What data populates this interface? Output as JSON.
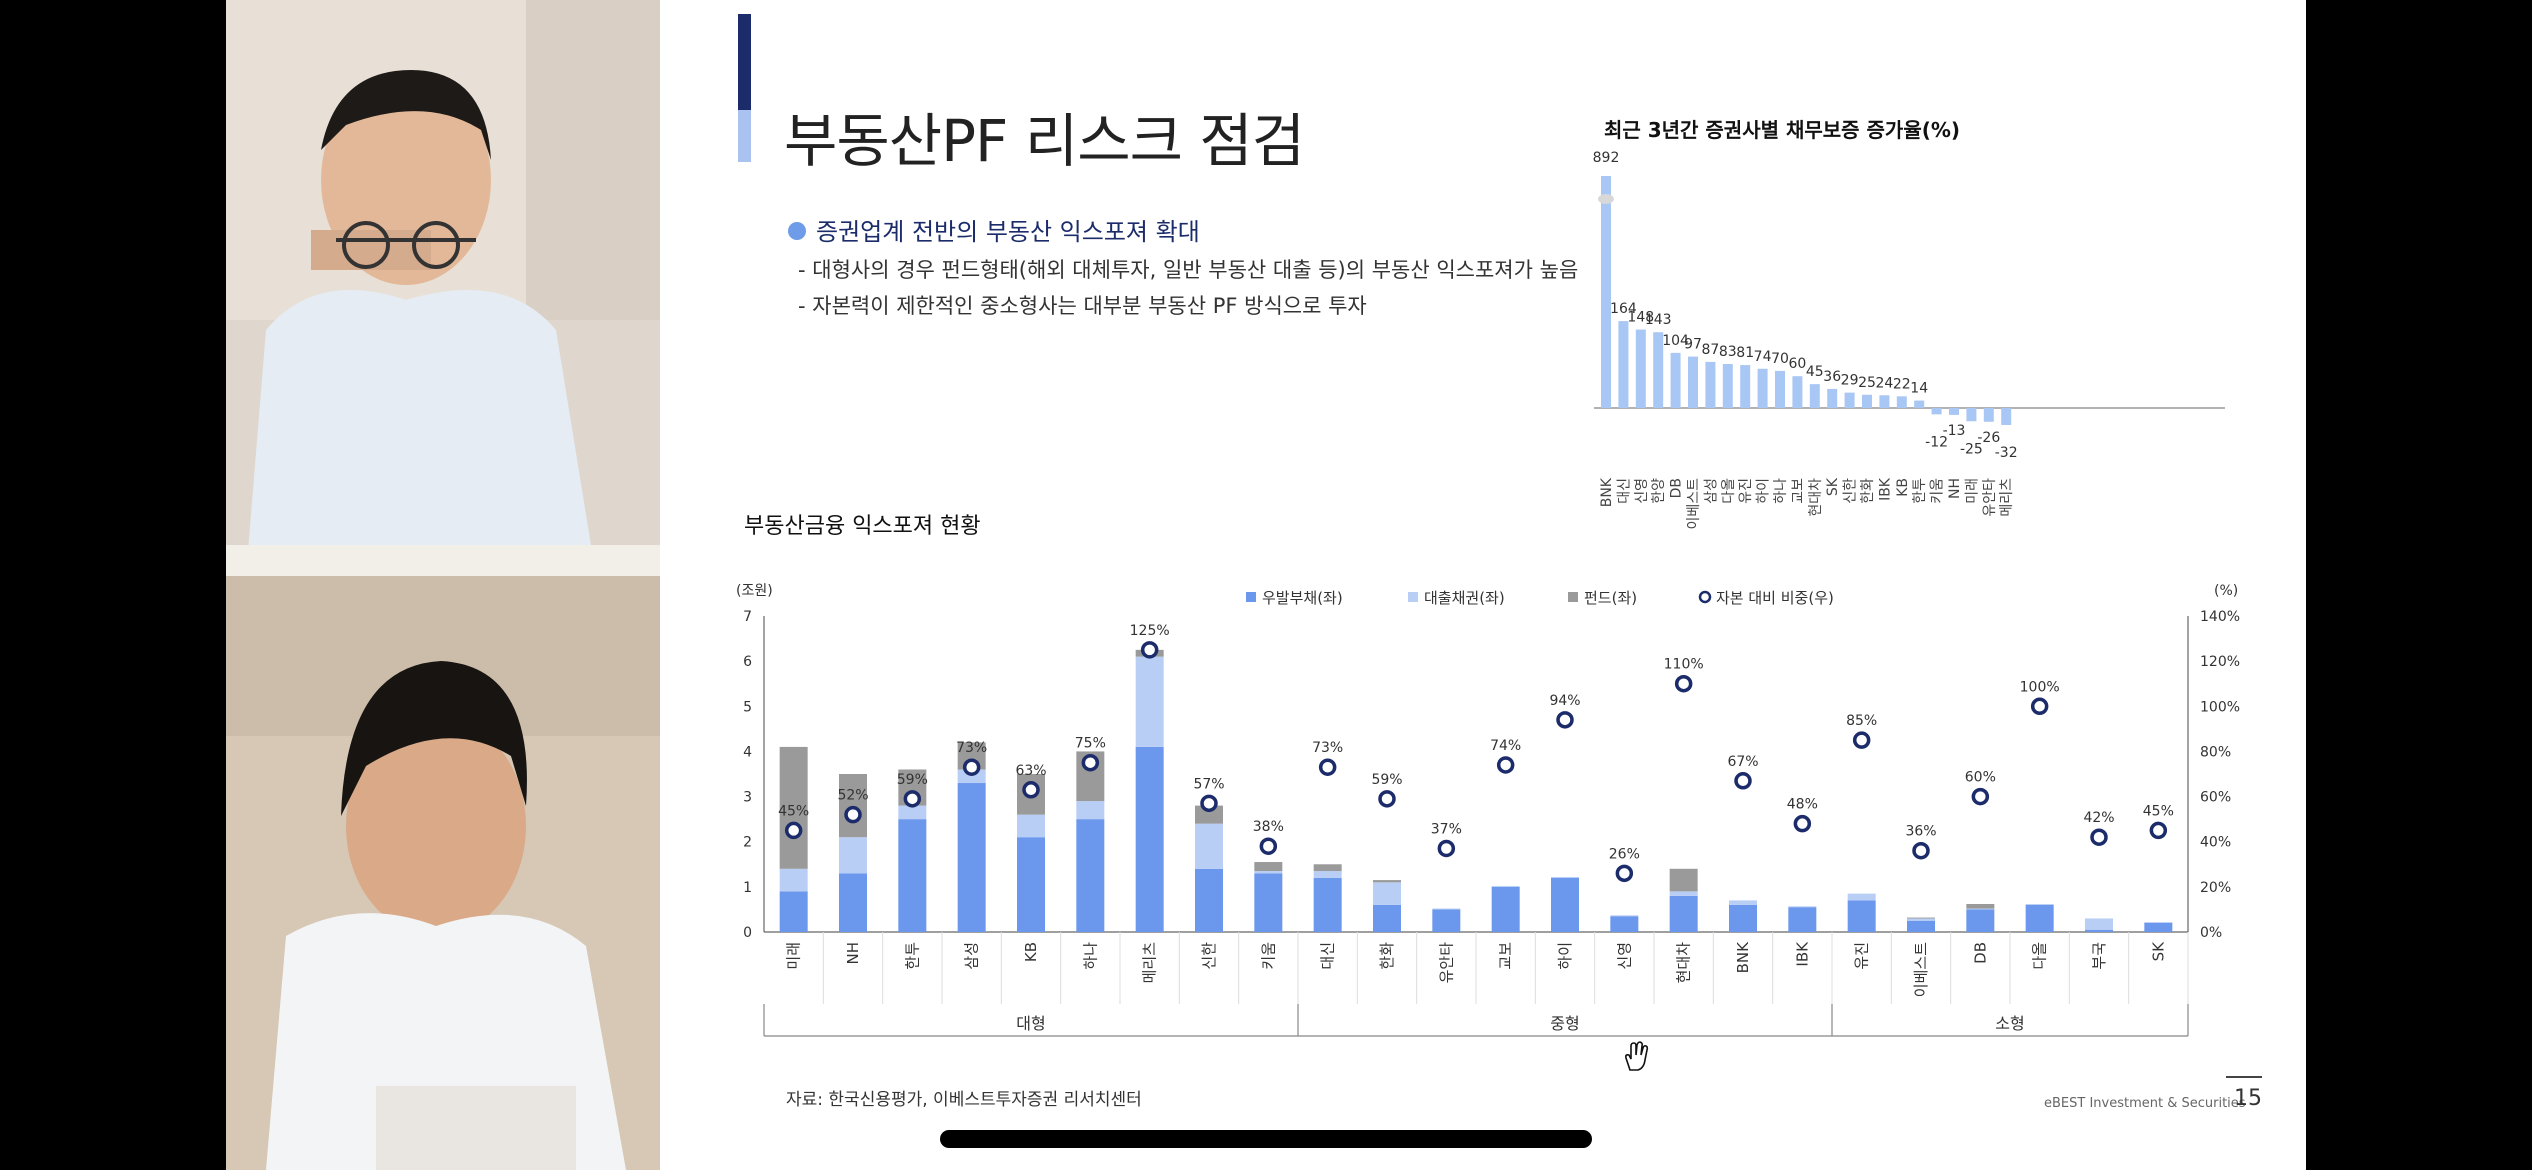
{
  "slide": {
    "title": "부동산PF 리스크 점검",
    "bullet": "증권업계 전반의 부동산 익스포져 확대",
    "sub1": "- 대형사의 경우 펀드형태(해외 대체투자, 일반 부동산 대출 등)의 부동산 익스포져가 높음",
    "sub2": "- 자본력이 제한적인 중소형사는 대부분 부동산 PF 방식으로 투자",
    "source": "자료: 한국신용평가, 이베스트투자증권 리서치센터",
    "brand": "eBEST Investment & Securities",
    "page": "15"
  },
  "colors": {
    "dark_navy": "#1c2c6b",
    "blue": "#6b97ec",
    "light_blue": "#b9cef5",
    "gray": "#9a9a9a",
    "top_bar": "#a9c7f4"
  },
  "chart_data": [
    {
      "type": "bar",
      "title": "최근 3년간 증권사별 채무보증 증가율(%)",
      "categories": [
        "BNK",
        "대신",
        "신영",
        "한양",
        "DB",
        "이베스트",
        "삼성",
        "다올",
        "유진",
        "하이",
        "하나",
        "교보",
        "현대차",
        "SK",
        "신한",
        "한화",
        "IBK",
        "KB",
        "한투",
        "키움",
        "NH",
        "미래",
        "유안타",
        "메리츠"
      ],
      "values": [
        892,
        164,
        148,
        143,
        104,
        97,
        87,
        83,
        81,
        74,
        70,
        60,
        45,
        36,
        29,
        25,
        24,
        22,
        14,
        -12,
        -13,
        -25,
        -26,
        -32
      ],
      "value_labels": [
        "892",
        "164",
        "148",
        "143",
        "104",
        "97",
        "87",
        "83",
        "81",
        "74",
        "70",
        "60",
        "45",
        "36",
        "29",
        "25",
        "24",
        "22",
        "14",
        "-12",
        "-13",
        "-25",
        "-26",
        "-32"
      ],
      "note": "axis broken for BNK"
    },
    {
      "type": "bar",
      "title": "부동산금융 익스포져 현황",
      "ylabel_left": "(조원)",
      "ylabel_right": "(%)",
      "ylim_left": [
        0,
        7
      ],
      "ylim_right": [
        0,
        140
      ],
      "yticks_left": [
        "0",
        "1",
        "2",
        "3",
        "4",
        "5",
        "6",
        "7"
      ],
      "yticks_right": [
        "0%",
        "20%",
        "40%",
        "60%",
        "80%",
        "100%",
        "120%",
        "140%"
      ],
      "legend": [
        "우발부채(좌)",
        "대출채권(좌)",
        "펀드(좌)",
        "자본 대비 비중(우)"
      ],
      "categories": [
        "미래",
        "NH",
        "한투",
        "삼성",
        "KB",
        "하나",
        "메리츠",
        "신한",
        "키움",
        "대신",
        "한화",
        "유안타",
        "교보",
        "하이",
        "신영",
        "현대차",
        "BNK",
        "IBK",
        "유진",
        "이베스트",
        "DB",
        "다올",
        "부국",
        "SK"
      ],
      "groups": [
        {
          "label": "대형",
          "count": 9
        },
        {
          "label": "중형",
          "count": 9
        },
        {
          "label": "소형",
          "count": 6
        }
      ],
      "series": [
        {
          "name": "우발부채(좌)",
          "values": [
            0.9,
            1.3,
            2.5,
            3.3,
            2.1,
            2.5,
            4.1,
            1.4,
            1.3,
            1.2,
            0.6,
            0.5,
            1.0,
            1.2,
            0.35,
            0.8,
            0.6,
            0.55,
            0.7,
            0.25,
            0.5,
            0.6,
            0.05,
            0.2
          ]
        },
        {
          "name": "대출채권(좌)",
          "values": [
            0.5,
            0.8,
            0.3,
            0.3,
            0.5,
            0.4,
            2.0,
            1.0,
            0.05,
            0.15,
            0.5,
            0.02,
            0.02,
            0.02,
            0.02,
            0.1,
            0.1,
            0.02,
            0.15,
            0.05,
            0.02,
            0.02,
            0.25,
            0.02
          ]
        },
        {
          "name": "펀드(좌)",
          "values": [
            2.7,
            1.4,
            0.8,
            0.6,
            0.9,
            1.1,
            0.15,
            0.4,
            0.2,
            0.15,
            0.05,
            0.0,
            0.0,
            0.0,
            0.0,
            0.5,
            0.0,
            0.0,
            0.0,
            0.02,
            0.1,
            0.0,
            0.0,
            0.0
          ]
        },
        {
          "name": "자본 대비 비중(우)",
          "values": [
            45,
            52,
            59,
            73,
            63,
            75,
            125,
            57,
            38,
            73,
            59,
            37,
            74,
            94,
            26,
            110,
            67,
            48,
            85,
            36,
            60,
            100,
            42,
            45
          ]
        }
      ],
      "ratio_labels": [
        "45%",
        "52%",
        "59%",
        "73%",
        "63%",
        "75%",
        "125%",
        "57%",
        "38%",
        "73%",
        "59%",
        "37%",
        "74%",
        "94%",
        "26%",
        "110%",
        "67%",
        "48%",
        "85%",
        "36%",
        "60%",
        "100%",
        "42%",
        "45%"
      ]
    }
  ]
}
